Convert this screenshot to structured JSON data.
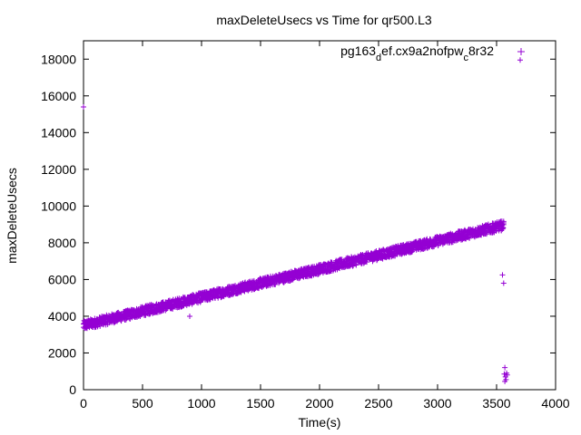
{
  "chart_data": {
    "type": "scatter",
    "title": "maxDeleteUsecs vs Time for qr500.L3",
    "xlabel": "Time(s)",
    "ylabel": "maxDeleteUsecs",
    "xlim": [
      0,
      4000
    ],
    "ylim": [
      0,
      19000
    ],
    "xticks": [
      0,
      500,
      1000,
      1500,
      2000,
      2500,
      3000,
      3500,
      4000
    ],
    "yticks": [
      0,
      2000,
      4000,
      6000,
      8000,
      10000,
      12000,
      14000,
      16000,
      18000
    ],
    "grid": false,
    "legend_placement": "top-right",
    "series": [
      {
        "legend_label": {
          "main": "pg163",
          "sub1": "d",
          "mid": "ef.cx9a2nofpw",
          "sub2": "c",
          "end": "8r32"
        },
        "color": "#9400d3",
        "marker": "plus",
        "trend": {
          "x_range": [
            0,
            3560
          ],
          "y_start": 3500,
          "y_end": 8950,
          "band_half_width": 260,
          "sample_step": 5
        },
        "outliers": [
          [
            0,
            15400
          ],
          [
            900,
            4000
          ],
          [
            3550,
            6250
          ],
          [
            3560,
            5800
          ],
          [
            3570,
            1200
          ],
          [
            3565,
            850
          ],
          [
            3575,
            700
          ],
          [
            3580,
            550
          ],
          [
            3585,
            900
          ],
          [
            3570,
            450
          ],
          [
            3590,
            800
          ],
          [
            3700,
            17950
          ]
        ]
      }
    ]
  }
}
